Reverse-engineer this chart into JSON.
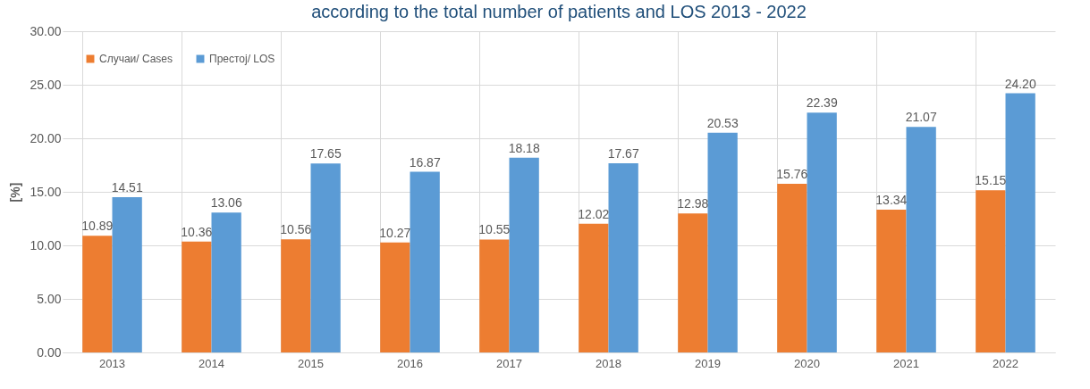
{
  "chart_data": {
    "type": "bar",
    "title": "according to the total number of patients and LOS 2013 - 2022",
    "ylabel": "[%]",
    "categories": [
      "2013",
      "2014",
      "2015",
      "2016",
      "2017",
      "2018",
      "2019",
      "2020",
      "2021",
      "2022"
    ],
    "series": [
      {
        "name": "Случаи/ Cases",
        "color": "#ed7d31",
        "values": [
          10.89,
          10.36,
          10.56,
          10.27,
          10.55,
          12.02,
          12.98,
          15.76,
          13.34,
          15.15
        ],
        "value_labels": [
          "10.89",
          "10.36",
          "10.56",
          "10.27",
          "10.55",
          "12.02",
          "12.98",
          "15.76",
          "13.34",
          "15.15"
        ]
      },
      {
        "name": "Престој/ LOS",
        "color": "#5b9bd5",
        "values": [
          14.51,
          13.06,
          17.65,
          16.87,
          18.18,
          17.67,
          20.53,
          22.39,
          21.07,
          24.2
        ],
        "value_labels": [
          "14.51",
          "13.06",
          "17.65",
          "16.87",
          "18.18",
          "17.67",
          "20.53",
          "22.39",
          "21.07",
          "24.20"
        ]
      }
    ],
    "ylim": [
      0,
      30
    ],
    "yticks": [
      {
        "value": 0,
        "label": "0.00"
      },
      {
        "value": 5,
        "label": "5.00"
      },
      {
        "value": 10,
        "label": "10.00"
      },
      {
        "value": 15,
        "label": "15.00"
      },
      {
        "value": 20,
        "label": "20.00"
      },
      {
        "value": 25,
        "label": "25.00"
      },
      {
        "value": 30,
        "label": "30.00"
      }
    ],
    "grid": true,
    "legend": "top left"
  }
}
